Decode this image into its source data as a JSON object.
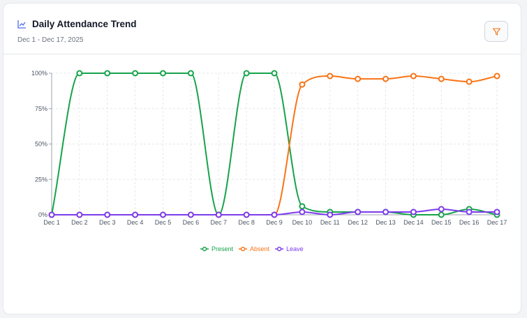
{
  "header": {
    "title": "Daily Attendance Trend",
    "subtitle": "Dec 1 - Dec 17, 2025",
    "title_icon": "line-chart-icon",
    "filter_icon": "filter-icon"
  },
  "chart_data": {
    "type": "line",
    "title": "",
    "xlabel": "",
    "ylabel": "",
    "categories": [
      "Dec 1",
      "Dec 2",
      "Dec 3",
      "Dec 4",
      "Dec 5",
      "Dec 6",
      "Dec 7",
      "Dec 8",
      "Dec 9",
      "Dec 10",
      "Dec 11",
      "Dec 12",
      "Dec 13",
      "Dec 14",
      "Dec 15",
      "Dec 16",
      "Dec 17"
    ],
    "ylim": [
      0,
      100
    ],
    "yticks": [
      "0%",
      "25%",
      "50%",
      "75%",
      "100%"
    ],
    "grid": true,
    "legend": "bottom",
    "series": [
      {
        "name": "Present",
        "color": "#16a34a",
        "values": [
          0,
          100,
          100,
          100,
          100,
          100,
          0,
          100,
          100,
          6,
          2,
          2,
          2,
          0,
          0,
          4,
          0
        ]
      },
      {
        "name": "Absent",
        "color": "#f97316",
        "values": [
          0,
          0,
          0,
          0,
          0,
          0,
          0,
          0,
          0,
          92,
          98,
          96,
          96,
          98,
          96,
          94,
          98
        ]
      },
      {
        "name": "Leave",
        "color": "#7c3aed",
        "values": [
          0,
          0,
          0,
          0,
          0,
          0,
          0,
          0,
          0,
          2,
          0,
          2,
          2,
          2,
          4,
          2,
          2
        ]
      }
    ]
  }
}
